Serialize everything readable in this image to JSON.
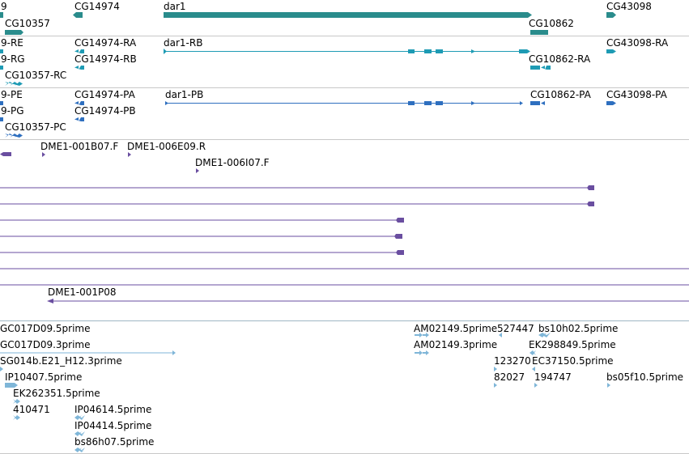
{
  "colors": {
    "gene": "#2a8c8c",
    "transcript": "#1e9bb4",
    "protein": "#2e6fbf",
    "clone": "#6a4ea0",
    "est": "#7fb6d8",
    "separator": "#c8c8c8",
    "section_separator": "#9fb7c4"
  },
  "gene_track": {
    "labels": [
      "9",
      "CG14974",
      "dar1",
      "CG43098",
      "CG10357",
      "CG10862"
    ]
  },
  "transcript_track": {
    "labels": [
      "9-RE",
      "CG14974-RA",
      "dar1-RB",
      "CG43098-RA",
      "9-RG",
      "CG14974-RB",
      "CG10862-RA",
      "CG10357-RC"
    ]
  },
  "protein_track": {
    "labels": [
      "9-PE",
      "CG14974-PA",
      "dar1-PB",
      "CG10862-PA",
      "CG43098-PA",
      "9-PG",
      "CG14974-PB",
      "CG10357-PC"
    ]
  },
  "clone_track": {
    "labels": [
      "DME1-001B07.F",
      "DME1-006E09.R",
      "DME1-006I07.F",
      "DME1-001P08"
    ]
  },
  "est_track": {
    "labels": [
      "GC017D09.5prime",
      "AM02149.5prime",
      "527447",
      "bs10h02.5prime",
      "GC017D09.3prime",
      "AM02149.3prime",
      "EK298849.5prime",
      "SG014b.E21_H12.3prime",
      "123270",
      "EC37150.5prime",
      "IP10407.5prime",
      "82027",
      "194747",
      "bs05f10.5prime",
      "EK262351.5prime",
      "410471",
      "IP04614.5prime",
      "IP04414.5prime",
      "bs86h07.5prime"
    ]
  }
}
